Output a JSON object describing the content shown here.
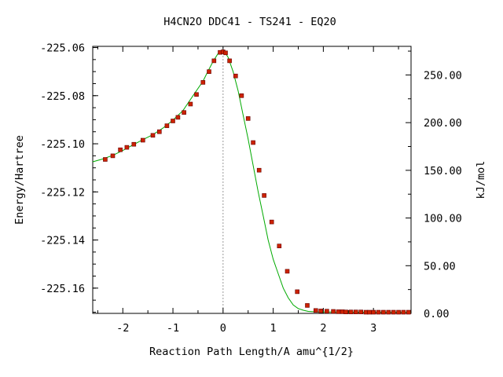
{
  "chart_data": {
    "type": "line",
    "title": "H4CN2O   DDC41 - TS241 - EQ20",
    "xlabel": "Reaction Path Length/A amu^{1/2}",
    "ylabel": "Energy/Hartree",
    "y2label": "kJ/mol",
    "xlim": [
      -2.6,
      3.75
    ],
    "ylim": [
      -225.1705,
      -225.0595
    ],
    "y2lim": [
      0,
      280
    ],
    "x_ticks": [
      -2,
      -1,
      0,
      1,
      2,
      3
    ],
    "x_tick_labels": [
      "-2",
      "-1",
      "0",
      "1",
      "2",
      "3"
    ],
    "y_ticks": [
      -225.06,
      -225.08,
      -225.1,
      -225.12,
      -225.14,
      -225.16
    ],
    "y_tick_labels": [
      "-225.06",
      "-225.08",
      "-225.10",
      "-225.12",
      "-225.14",
      "-225.16"
    ],
    "y2_ticks": [
      0,
      50,
      100,
      150,
      200,
      250
    ],
    "y2_tick_labels": [
      "0.00",
      "50.00",
      "100.00",
      "150.00",
      "200.00",
      "250.00"
    ],
    "ts_marker_x": 0,
    "grid": false,
    "colors": {
      "line": "#00aa00",
      "point_fill": "#cc2200",
      "point_edge": "#660000",
      "ts_line": "#999999"
    },
    "curve": {
      "x": [
        -2.6,
        -2.4,
        -2.2,
        -2.0,
        -1.8,
        -1.6,
        -1.4,
        -1.2,
        -1.0,
        -0.8,
        -0.6,
        -0.4,
        -0.3,
        -0.2,
        -0.1,
        0.0,
        0.05,
        0.1,
        0.2,
        0.3,
        0.4,
        0.5,
        0.6,
        0.7,
        0.8,
        0.9,
        1.0,
        1.1,
        1.2,
        1.3,
        1.4,
        1.5,
        1.6,
        1.7,
        1.8,
        1.9,
        2.0,
        2.2,
        2.4,
        2.6,
        2.8,
        3.0,
        3.2,
        3.4,
        3.6,
        3.75
      ],
      "y": [
        -225.1075,
        -225.1063,
        -225.1048,
        -225.1028,
        -225.1005,
        -225.0983,
        -225.0962,
        -225.0935,
        -225.0902,
        -225.0862,
        -225.08,
        -225.074,
        -225.0698,
        -225.0658,
        -225.0625,
        -225.062,
        -225.0625,
        -225.064,
        -225.07,
        -225.078,
        -225.088,
        -225.098,
        -225.109,
        -225.12,
        -225.13,
        -225.14,
        -225.148,
        -225.154,
        -225.16,
        -225.164,
        -225.167,
        -225.1685,
        -225.1692,
        -225.1697,
        -225.1698,
        -225.1699,
        -225.1699,
        -225.1699,
        -225.17,
        -225.17,
        -225.17,
        -225.17,
        -225.17,
        -225.17,
        -225.17,
        -225.17
      ]
    },
    "points": {
      "x": [
        -2.35,
        -2.2,
        -2.05,
        -1.92,
        -1.78,
        -1.6,
        -1.4,
        -1.27,
        -1.12,
        -1.0,
        -0.9,
        -0.78,
        -0.65,
        -0.53,
        -0.4,
        -0.28,
        -0.18,
        -0.06,
        0.0,
        0.05,
        0.13,
        0.25,
        0.37,
        0.5,
        0.6,
        0.72,
        0.82,
        0.97,
        1.12,
        1.28,
        1.48,
        1.68,
        1.85,
        1.95,
        2.07,
        2.2,
        2.3,
        2.38,
        2.45,
        2.55,
        2.65,
        2.75,
        2.85,
        2.92,
        3.0,
        3.1,
        3.2,
        3.3,
        3.4,
        3.5,
        3.6,
        3.7
      ],
      "y": [
        -225.1065,
        -225.105,
        -225.1025,
        -225.1015,
        -225.1002,
        -225.0985,
        -225.0965,
        -225.095,
        -225.0925,
        -225.0905,
        -225.089,
        -225.087,
        -225.0835,
        -225.0795,
        -225.0745,
        -225.07,
        -225.0655,
        -225.062,
        -225.0618,
        -225.0622,
        -225.0655,
        -225.0718,
        -225.08,
        -225.0895,
        -225.0995,
        -225.111,
        -225.1215,
        -225.1325,
        -225.1425,
        -225.153,
        -225.1615,
        -225.1672,
        -225.1693,
        -225.1695,
        -225.1696,
        -225.1697,
        -225.1698,
        -225.1698,
        -225.1699,
        -225.1699,
        -225.1699,
        -225.1699,
        -225.17,
        -225.17,
        -225.17,
        -225.17,
        -225.17,
        -225.17,
        -225.17,
        -225.17,
        -225.17,
        -225.17
      ]
    }
  }
}
